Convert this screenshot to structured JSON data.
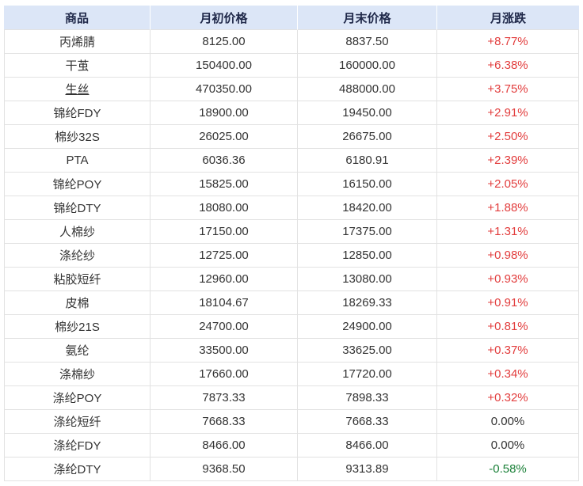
{
  "table": {
    "header": [
      "商品",
      "月初价格",
      "月末价格",
      "月涨跌"
    ],
    "rows": [
      {
        "name": "丙烯腈",
        "start": "8125.00",
        "end": "8837.50",
        "change": "+8.77%",
        "direction": "up",
        "link": false
      },
      {
        "name": "干茧",
        "start": "150400.00",
        "end": "160000.00",
        "change": "+6.38%",
        "direction": "up",
        "link": false
      },
      {
        "name": "生丝",
        "start": "470350.00",
        "end": "488000.00",
        "change": "+3.75%",
        "direction": "up",
        "link": true
      },
      {
        "name": "锦纶FDY",
        "start": "18900.00",
        "end": "19450.00",
        "change": "+2.91%",
        "direction": "up",
        "link": false
      },
      {
        "name": "棉纱32S",
        "start": "26025.00",
        "end": "26675.00",
        "change": "+2.50%",
        "direction": "up",
        "link": false
      },
      {
        "name": "PTA",
        "start": "6036.36",
        "end": "6180.91",
        "change": "+2.39%",
        "direction": "up",
        "link": false
      },
      {
        "name": "锦纶POY",
        "start": "15825.00",
        "end": "16150.00",
        "change": "+2.05%",
        "direction": "up",
        "link": false
      },
      {
        "name": "锦纶DTY",
        "start": "18080.00",
        "end": "18420.00",
        "change": "+1.88%",
        "direction": "up",
        "link": false
      },
      {
        "name": "人棉纱",
        "start": "17150.00",
        "end": "17375.00",
        "change": "+1.31%",
        "direction": "up",
        "link": false
      },
      {
        "name": "涤纶纱",
        "start": "12725.00",
        "end": "12850.00",
        "change": "+0.98%",
        "direction": "up",
        "link": false
      },
      {
        "name": "粘胶短纤",
        "start": "12960.00",
        "end": "13080.00",
        "change": "+0.93%",
        "direction": "up",
        "link": false
      },
      {
        "name": "皮棉",
        "start": "18104.67",
        "end": "18269.33",
        "change": "+0.91%",
        "direction": "up",
        "link": false
      },
      {
        "name": "棉纱21S",
        "start": "24700.00",
        "end": "24900.00",
        "change": "+0.81%",
        "direction": "up",
        "link": false
      },
      {
        "name": "氨纶",
        "start": "33500.00",
        "end": "33625.00",
        "change": "+0.37%",
        "direction": "up",
        "link": false
      },
      {
        "name": "涤棉纱",
        "start": "17660.00",
        "end": "17720.00",
        "change": "+0.34%",
        "direction": "up",
        "link": false
      },
      {
        "name": "涤纶POY",
        "start": "7873.33",
        "end": "7898.33",
        "change": "+0.32%",
        "direction": "up",
        "link": false
      },
      {
        "name": "涤纶短纤",
        "start": "7668.33",
        "end": "7668.33",
        "change": "0.00%",
        "direction": "flat",
        "link": false
      },
      {
        "name": "涤纶FDY",
        "start": "8466.00",
        "end": "8466.00",
        "change": "0.00%",
        "direction": "flat",
        "link": false
      },
      {
        "name": "涤纶DTY",
        "start": "9368.50",
        "end": "9313.89",
        "change": "-0.58%",
        "direction": "down",
        "link": false
      }
    ]
  },
  "colors": {
    "header_bg": "#dce6f7",
    "header_text": "#20294a",
    "body_text": "#333333",
    "up": "#e23c3c",
    "down": "#1a8038",
    "flat": "#333333",
    "border": "#e2e2e2"
  },
  "chart_data": {
    "type": "table",
    "columns": [
      "商品",
      "月初价格",
      "月末价格",
      "月涨跌"
    ],
    "rows": [
      [
        "丙烯腈",
        8125.0,
        8837.5,
        "+8.77%"
      ],
      [
        "干茧",
        150400.0,
        160000.0,
        "+6.38%"
      ],
      [
        "生丝",
        470350.0,
        488000.0,
        "+3.75%"
      ],
      [
        "锦纶FDY",
        18900.0,
        19450.0,
        "+2.91%"
      ],
      [
        "棉纱32S",
        26025.0,
        26675.0,
        "+2.50%"
      ],
      [
        "PTA",
        6036.36,
        6180.91,
        "+2.39%"
      ],
      [
        "锦纶POY",
        15825.0,
        16150.0,
        "+2.05%"
      ],
      [
        "锦纶DTY",
        18080.0,
        18420.0,
        "+1.88%"
      ],
      [
        "人棉纱",
        17150.0,
        17375.0,
        "+1.31%"
      ],
      [
        "涤纶纱",
        12725.0,
        12850.0,
        "+0.98%"
      ],
      [
        "粘胶短纤",
        12960.0,
        13080.0,
        "+0.93%"
      ],
      [
        "皮棉",
        18104.67,
        18269.33,
        "+0.91%"
      ],
      [
        "棉纱21S",
        24700.0,
        24900.0,
        "+0.81%"
      ],
      [
        "氨纶",
        33500.0,
        33625.0,
        "+0.37%"
      ],
      [
        "涤棉纱",
        17660.0,
        17720.0,
        "+0.34%"
      ],
      [
        "涤纶POY",
        7873.33,
        7898.33,
        "+0.32%"
      ],
      [
        "涤纶短纤",
        7668.33,
        7668.33,
        "0.00%"
      ],
      [
        "涤纶FDY",
        8466.0,
        8466.0,
        "0.00%"
      ],
      [
        "涤纶DTY",
        9368.5,
        9313.89,
        "-0.58%"
      ]
    ]
  }
}
